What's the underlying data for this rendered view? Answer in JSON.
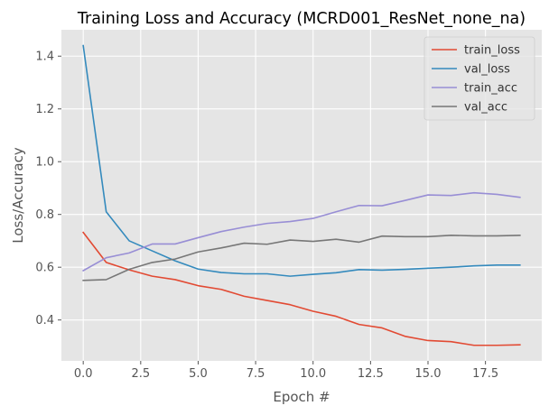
{
  "chart_data": {
    "type": "line",
    "title": "Training Loss and Accuracy (MCRD001_ResNet_none_na)",
    "xlabel": "Epoch #",
    "ylabel": "Loss/Accuracy",
    "xlim": [
      -0.95,
      19.95
    ],
    "ylim": [
      0.245,
      1.5
    ],
    "x": [
      0,
      1,
      2,
      3,
      4,
      5,
      6,
      7,
      8,
      9,
      10,
      11,
      12,
      13,
      14,
      15,
      16,
      17,
      18,
      19
    ],
    "x_ticks": [
      0.0,
      2.5,
      5.0,
      7.5,
      10.0,
      12.5,
      15.0,
      17.5
    ],
    "x_tick_labels": [
      "0.0",
      "2.5",
      "5.0",
      "7.5",
      "10.0",
      "12.5",
      "15.0",
      "17.5"
    ],
    "y_ticks": [
      0.4,
      0.6,
      0.8,
      1.0,
      1.2,
      1.4
    ],
    "y_tick_labels": [
      "0.4",
      "0.6",
      "0.8",
      "1.0",
      "1.2",
      "1.4"
    ],
    "grid": true,
    "legend_position": "top-right",
    "series": [
      {
        "name": "train_loss",
        "color": "#e24a33",
        "values": [
          0.732,
          0.618,
          0.59,
          0.566,
          0.553,
          0.53,
          0.516,
          0.49,
          0.474,
          0.458,
          0.433,
          0.414,
          0.383,
          0.37,
          0.338,
          0.322,
          0.318,
          0.304,
          0.304,
          0.306
        ]
      },
      {
        "name": "val_loss",
        "color": "#348abd",
        "values": [
          1.44,
          0.81,
          0.7,
          0.662,
          0.624,
          0.593,
          0.58,
          0.575,
          0.575,
          0.566,
          0.573,
          0.579,
          0.591,
          0.589,
          0.592,
          0.596,
          0.6,
          0.605,
          0.608,
          0.608
        ]
      },
      {
        "name": "train_acc",
        "color": "#988ed5",
        "values": [
          0.587,
          0.636,
          0.654,
          0.688,
          0.688,
          0.712,
          0.735,
          0.752,
          0.766,
          0.773,
          0.785,
          0.81,
          0.834,
          0.833,
          0.853,
          0.874,
          0.872,
          0.882,
          0.876,
          0.865
        ]
      },
      {
        "name": "val_acc",
        "color": "#777777",
        "values": [
          0.55,
          0.553,
          0.592,
          0.618,
          0.631,
          0.658,
          0.673,
          0.691,
          0.687,
          0.703,
          0.698,
          0.706,
          0.695,
          0.718,
          0.716,
          0.716,
          0.721,
          0.719,
          0.719,
          0.721
        ]
      }
    ]
  }
}
